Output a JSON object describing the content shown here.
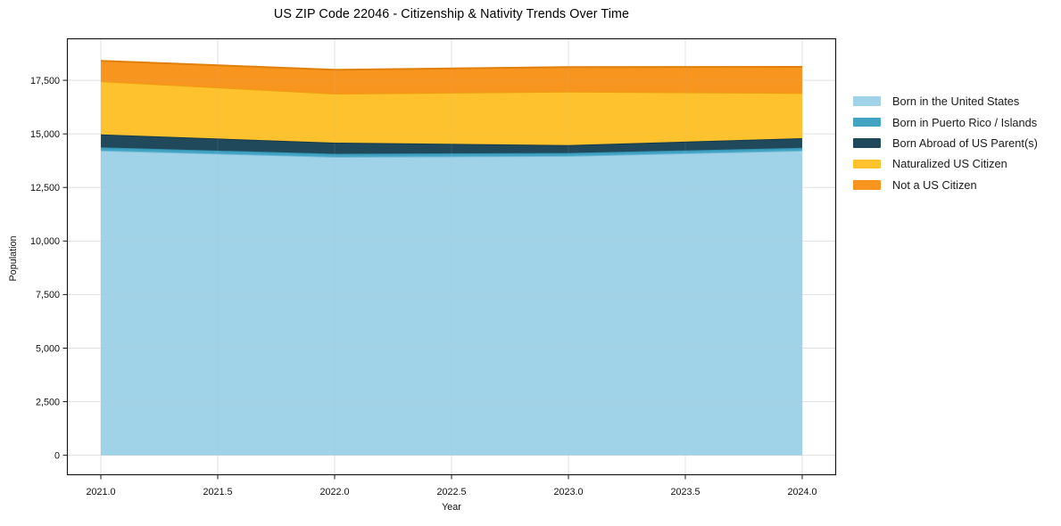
{
  "chart_data": {
    "type": "area",
    "stacked": true,
    "title": "US ZIP Code 22046 - Citizenship & Nativity Trends Over Time",
    "xlabel": "Year",
    "ylabel": "Population",
    "x": [
      2021,
      2022,
      2023,
      2024
    ],
    "series": [
      {
        "name": "Born in the United States",
        "values": [
          14230,
          13930,
          13970,
          14220
        ],
        "fill": "#A0D2E8",
        "line": "#6FB9D8"
      },
      {
        "name": "Born in Puerto Rico / Islands",
        "values": [
          140,
          140,
          140,
          130
        ],
        "fill": "#42A3C2",
        "line": "#3292B4"
      },
      {
        "name": "Born Abroad of US Parent(s)",
        "values": [
          610,
          520,
          370,
          450
        ],
        "fill": "#204A5C",
        "line": "#143A4C"
      },
      {
        "name": "Naturalized US Citizen",
        "values": [
          2480,
          2290,
          2490,
          2110
        ],
        "fill": "#FDC22D",
        "line": "#EE9E10"
      },
      {
        "name": "Not a US Citizen",
        "values": [
          950,
          1110,
          1150,
          1220
        ],
        "fill": "#F7951F",
        "line": "#E07F0A"
      }
    ],
    "x_ticks": [
      {
        "value": 2021.0,
        "label": "2021.0"
      },
      {
        "value": 2021.5,
        "label": "2021.5"
      },
      {
        "value": 2022.0,
        "label": "2022.0"
      },
      {
        "value": 2022.5,
        "label": "2022.5"
      },
      {
        "value": 2023.0,
        "label": "2023.0"
      },
      {
        "value": 2023.5,
        "label": "2023.5"
      },
      {
        "value": 2024.0,
        "label": "2024.0"
      }
    ],
    "y_ticks": [
      {
        "value": 0,
        "label": "0"
      },
      {
        "value": 2500,
        "label": "2,500"
      },
      {
        "value": 5000,
        "label": "5,000"
      },
      {
        "value": 7500,
        "label": "7,500"
      },
      {
        "value": 10000,
        "label": "10,000"
      },
      {
        "value": 12500,
        "label": "12,500"
      },
      {
        "value": 15000,
        "label": "15,000"
      },
      {
        "value": 17500,
        "label": "17,500"
      }
    ],
    "xlim": [
      2020.855,
      2024.145
    ],
    "ylim": [
      -930,
      19460
    ],
    "grid": true,
    "legend_position": "right",
    "colors": {
      "grid": "#E6E6E6",
      "spine": "#1A1A1A",
      "tick": "#1A1A1A"
    }
  }
}
